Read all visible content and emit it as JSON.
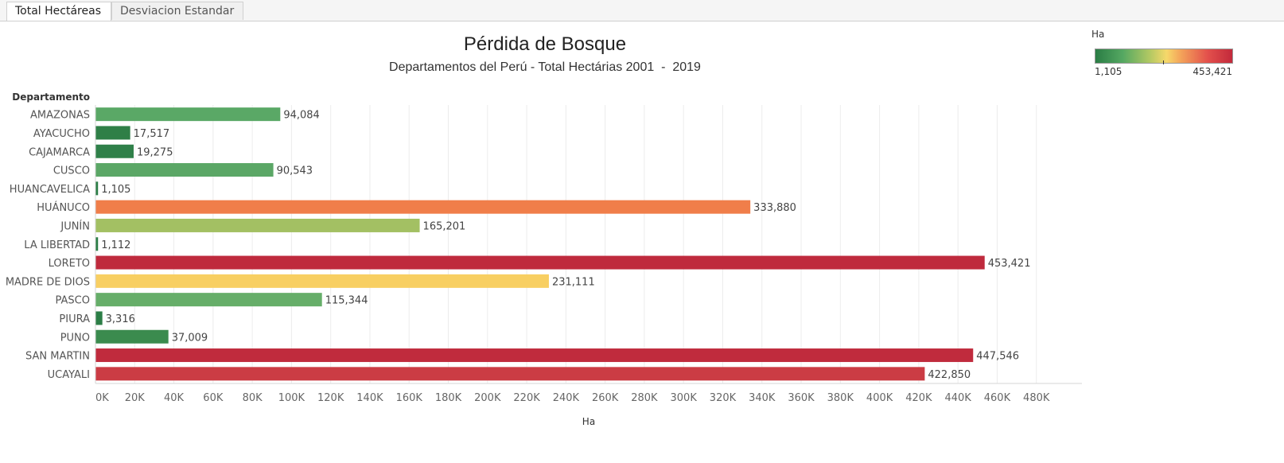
{
  "tabs": [
    {
      "label": "Total Hectáreas",
      "active": true
    },
    {
      "label": "Desviacion Estandar",
      "active": false
    }
  ],
  "legend": {
    "title": "Ha",
    "min_label": "1,105",
    "max_label": "453,421",
    "colors": [
      "#2a7d45",
      "#55a862",
      "#b4c963",
      "#f6d86a",
      "#f4a55a",
      "#e3504c",
      "#c2293b"
    ]
  },
  "chart_data": {
    "type": "bar",
    "orientation": "horizontal",
    "title": "Pérdida de Bosque",
    "subtitle": "Departamentos del Perú - Total Hectárias 2001  -  2019",
    "row_header": "Departamento",
    "xlabel": "Ha",
    "xlim": [
      0,
      500000
    ],
    "x_ticks": [
      "0K",
      "20K",
      "40K",
      "60K",
      "80K",
      "100K",
      "120K",
      "140K",
      "160K",
      "180K",
      "200K",
      "220K",
      "240K",
      "260K",
      "280K",
      "300K",
      "320K",
      "340K",
      "360K",
      "380K",
      "400K",
      "420K",
      "440K",
      "460K",
      "480K"
    ],
    "grid": true,
    "categories": [
      "AMAZONAS",
      "AYACUCHO",
      "CAJAMARCA",
      "CUSCO",
      "HUANCAVELICA",
      "HUÁNUCO",
      "JUNÍN",
      "LA LIBERTAD",
      "LORETO",
      "MADRE DE DIOS",
      "PASCO",
      "PIURA",
      "PUNO",
      "SAN MARTIN",
      "UCAYALI"
    ],
    "values": [
      94084,
      17517,
      19275,
      90543,
      1105,
      333880,
      165201,
      1112,
      453421,
      231111,
      115344,
      3316,
      37009,
      447546,
      422850
    ],
    "value_labels": [
      "94,084",
      "17,517",
      "19,275",
      "90,543",
      "1,105",
      "333,880",
      "165,201",
      "1,112",
      "453,421",
      "231,111",
      "115,344",
      "3,316",
      "37,009",
      "447,546",
      "422,850"
    ],
    "colors": [
      "#5aa866",
      "#2f7f47",
      "#2f8049",
      "#5ba766",
      "#2a7d45",
      "#f07e4a",
      "#a3c063",
      "#2a7d45",
      "#bf2a3d",
      "#f8cf62",
      "#66ae69",
      "#2c7e46",
      "#3b8b4e",
      "#c02b3d",
      "#cb3c44"
    ]
  }
}
